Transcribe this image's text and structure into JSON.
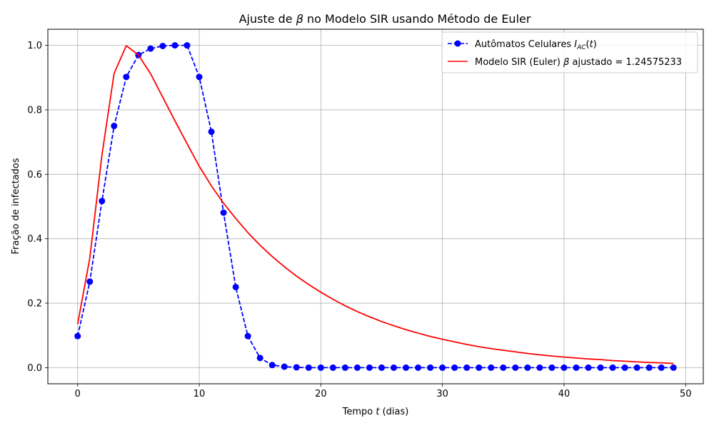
{
  "chart_data": {
    "type": "line",
    "title_parts": {
      "pre": "Ajuste de ",
      "beta": "β",
      "post": " no Modelo SIR usando Método de Euler"
    },
    "xlabel_parts": {
      "pre": "Tempo ",
      "var": "t",
      "post": " (dias)"
    },
    "ylabel": "Fração de infectados",
    "xlim": [
      -2.45,
      51.45
    ],
    "ylim": [
      -0.05,
      1.05
    ],
    "xticks": [
      0,
      10,
      20,
      30,
      40,
      50
    ],
    "xtick_labels": [
      "0",
      "10",
      "20",
      "30",
      "40",
      "50"
    ],
    "yticks": [
      0.0,
      0.2,
      0.4,
      0.6,
      0.8,
      1.0
    ],
    "ytick_labels": [
      "0.0",
      "0.2",
      "0.4",
      "0.6",
      "0.8",
      "1.0"
    ],
    "grid": true,
    "legend_position": "top-right",
    "series": [
      {
        "name_parts": {
          "pre": "Autômatos Celulares ",
          "var": "I",
          "sub": "AC",
          "mid": "(",
          "var2": "t",
          "post": ")"
        },
        "color": "#0000ff",
        "style": "dashed",
        "marker": "circle",
        "x": [
          0,
          1,
          2,
          3,
          4,
          5,
          6,
          7,
          8,
          9,
          10,
          11,
          12,
          13,
          14,
          15,
          16,
          17,
          18,
          19,
          20,
          21,
          22,
          23,
          24,
          25,
          26,
          27,
          28,
          29,
          30,
          31,
          32,
          33,
          34,
          35,
          36,
          37,
          38,
          39,
          40,
          41,
          42,
          43,
          44,
          45,
          46,
          47,
          48,
          49
        ],
        "y": [
          0.098,
          0.267,
          0.517,
          0.75,
          0.902,
          0.97,
          0.99,
          0.998,
          1.0,
          1.0,
          0.902,
          0.732,
          0.481,
          0.25,
          0.098,
          0.03,
          0.008,
          0.003,
          0.001,
          0,
          0,
          0,
          0,
          0,
          0,
          0,
          0,
          0,
          0,
          0,
          0,
          0,
          0,
          0,
          0,
          0,
          0,
          0,
          0,
          0,
          0,
          0,
          0,
          0,
          0,
          0,
          0,
          0,
          0,
          0
        ]
      },
      {
        "name_parts": {
          "pre": "Modelo SIR (Euler) ",
          "beta": "β",
          "post": " ajustado = 1.24575233"
        },
        "color": "#ff0000",
        "style": "solid",
        "marker": "none",
        "x": [
          0,
          1,
          2,
          3,
          4,
          5,
          6,
          7,
          8,
          9,
          10,
          11,
          12,
          13,
          14,
          15,
          16,
          17,
          18,
          19,
          20,
          21,
          22,
          23,
          24,
          25,
          26,
          27,
          28,
          29,
          30,
          31,
          32,
          33,
          34,
          35,
          36,
          37,
          38,
          39,
          40,
          41,
          42,
          43,
          44,
          45,
          46,
          47,
          48,
          49
        ],
        "y": [
          0.135,
          0.34,
          0.66,
          0.913,
          0.999,
          0.97,
          0.912,
          0.839,
          0.766,
          0.695,
          0.625,
          0.564,
          0.51,
          0.463,
          0.419,
          0.38,
          0.345,
          0.313,
          0.284,
          0.258,
          0.234,
          0.212,
          0.192,
          0.174,
          0.158,
          0.143,
          0.13,
          0.118,
          0.107,
          0.097,
          0.088,
          0.08,
          0.072,
          0.065,
          0.059,
          0.054,
          0.049,
          0.044,
          0.04,
          0.036,
          0.033,
          0.03,
          0.027,
          0.025,
          0.022,
          0.02,
          0.018,
          0.016,
          0.015,
          0.013
        ]
      }
    ]
  }
}
